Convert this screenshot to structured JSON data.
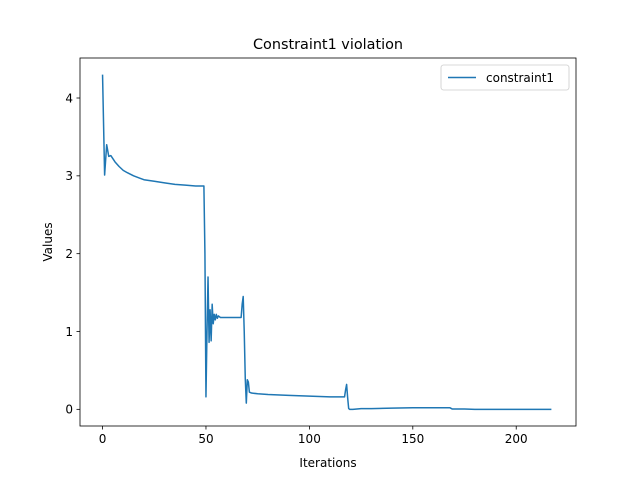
{
  "chart_data": {
    "type": "line",
    "title": "Constraint1 violation",
    "xlabel": "Iterations",
    "ylabel": "Values",
    "xlim": [
      -10.9,
      228.9
    ],
    "ylim": [
      -0.214,
      4.514
    ],
    "xticks": [
      0,
      50,
      100,
      150,
      200
    ],
    "yticks": [
      0,
      1,
      2,
      3,
      4
    ],
    "grid": false,
    "legend_position": "top-right",
    "colors": {
      "series": "#1f77b4",
      "axes": "#000000",
      "background": "#ffffff"
    },
    "series": [
      {
        "name": "constraint1",
        "x": [
          0,
          1,
          2,
          3,
          4,
          5,
          6,
          8,
          10,
          12,
          15,
          18,
          20,
          25,
          30,
          35,
          40,
          45,
          49,
          49.5,
          50,
          50.5,
          51,
          51.5,
          52,
          52.5,
          53,
          53.5,
          54,
          54.5,
          55,
          55.5,
          56,
          57,
          58,
          60,
          62,
          65,
          67,
          67.5,
          68,
          68.5,
          69,
          69.5,
          70,
          70.5,
          71,
          72,
          75,
          80,
          90,
          100,
          110,
          117,
          117.5,
          118,
          118.5,
          119,
          119.5,
          120,
          121,
          125,
          130,
          140,
          150,
          160,
          168,
          169,
          175,
          180,
          190,
          200,
          210,
          217
        ],
        "values": [
          4.3,
          3.01,
          3.4,
          3.25,
          3.26,
          3.22,
          3.18,
          3.12,
          3.07,
          3.04,
          3.0,
          2.97,
          2.95,
          2.93,
          2.91,
          2.89,
          2.88,
          2.87,
          2.87,
          2.0,
          0.16,
          1.0,
          1.7,
          0.86,
          1.28,
          0.88,
          1.35,
          1.1,
          1.22,
          1.15,
          1.22,
          1.17,
          1.2,
          1.18,
          1.18,
          1.18,
          1.18,
          1.18,
          1.18,
          1.35,
          1.45,
          1.0,
          0.4,
          0.08,
          0.38,
          0.35,
          0.22,
          0.21,
          0.2,
          0.19,
          0.18,
          0.17,
          0.16,
          0.16,
          0.25,
          0.32,
          0.15,
          0.01,
          0.0,
          0.0,
          0.0,
          0.01,
          0.01,
          0.015,
          0.02,
          0.02,
          0.02,
          0.005,
          0.005,
          0.0,
          0.0,
          0.0,
          0.0,
          0.0
        ]
      }
    ]
  }
}
